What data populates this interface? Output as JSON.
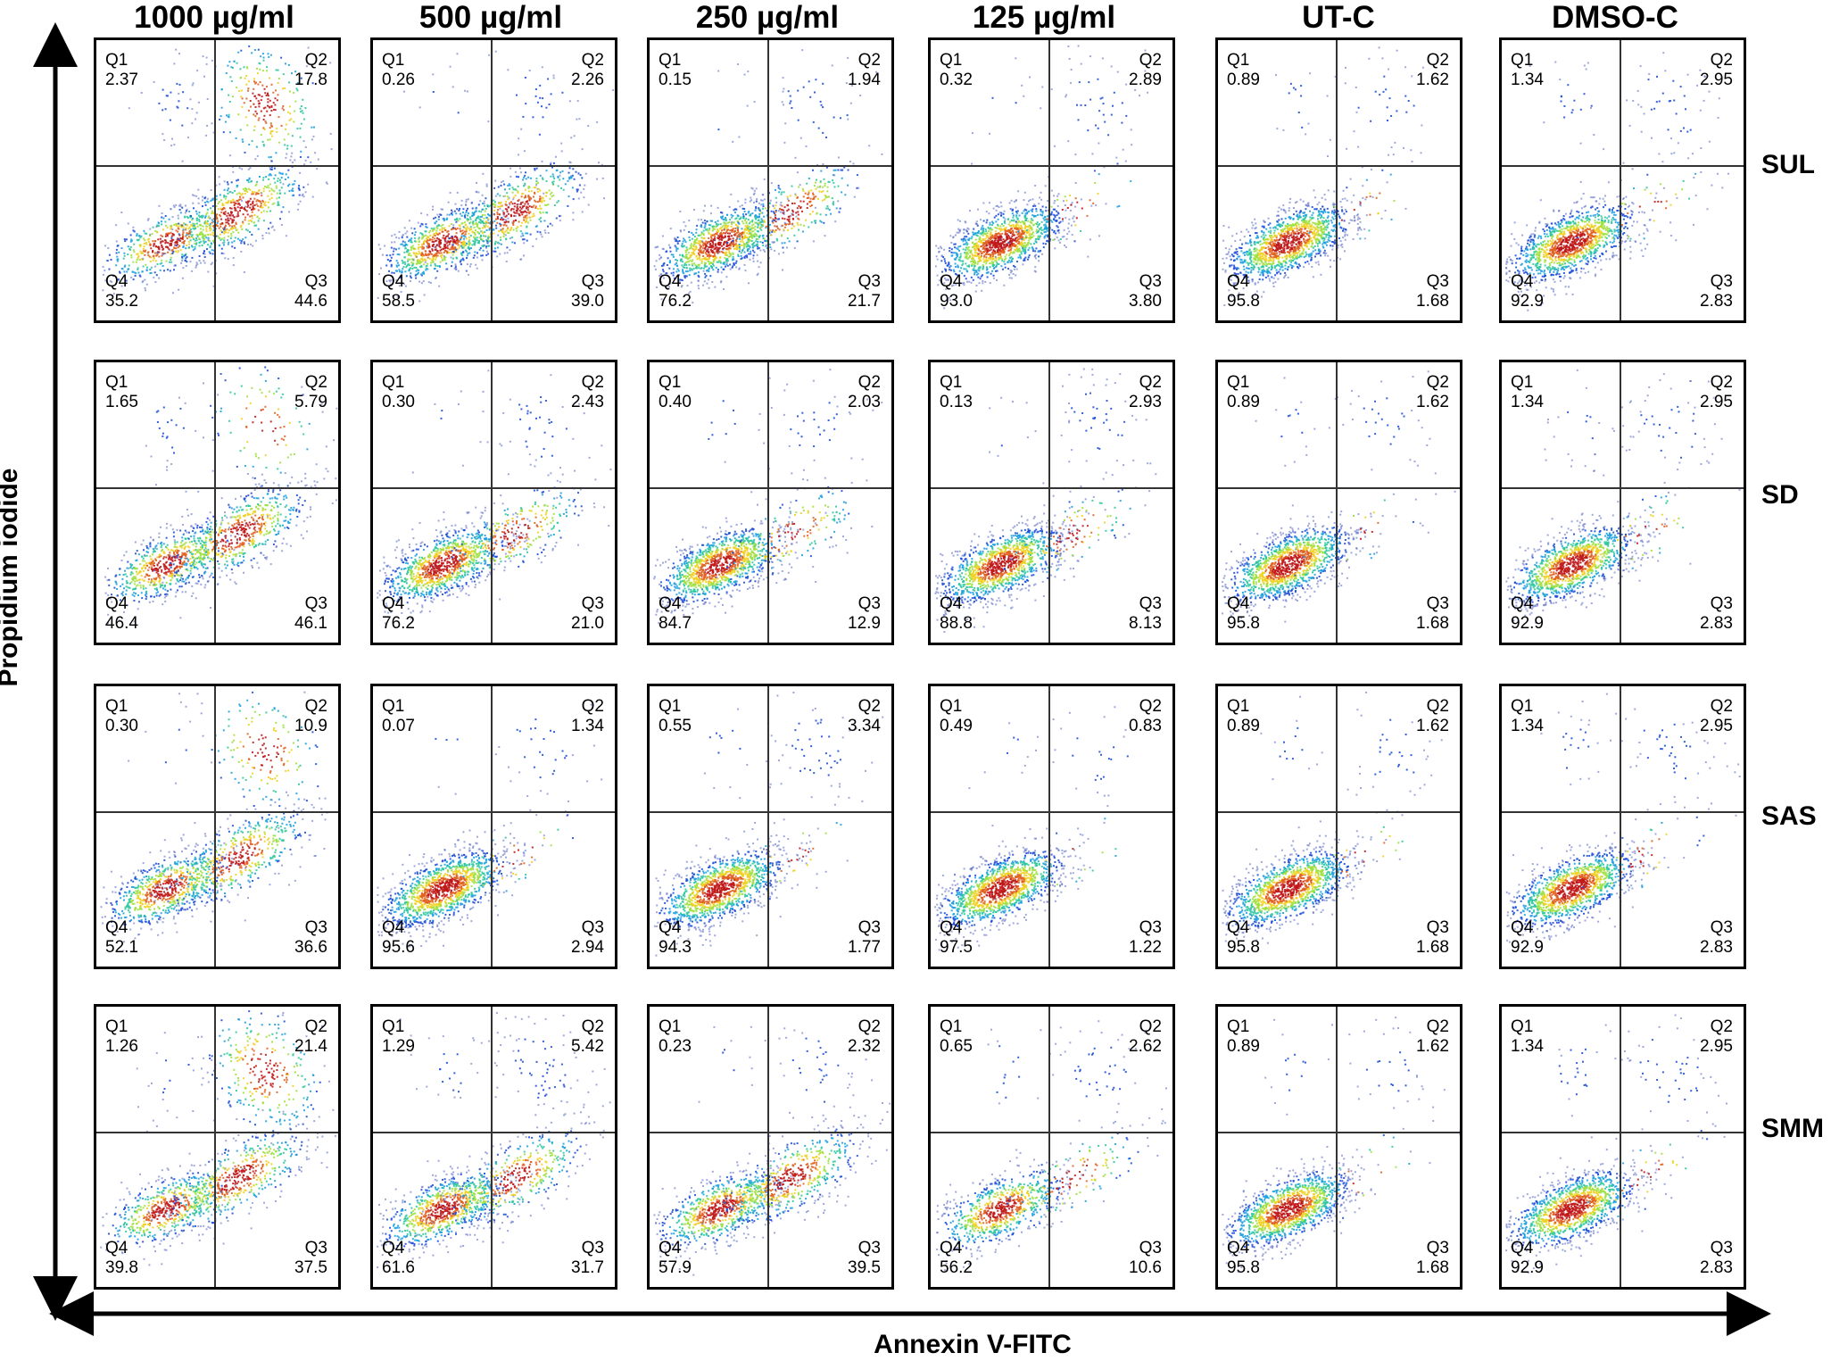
{
  "columns": [
    "1000 µg/ml",
    "500 µg/ml",
    "250 µg/ml",
    "125 µg/ml",
    "UT-C",
    "DMSO-C"
  ],
  "rows": [
    "SUL",
    "SD",
    "SAS",
    "SMM"
  ],
  "axes": {
    "x_title": "Annexin V-FITC",
    "y_title": "Propidium iodide"
  },
  "quadrant_names": [
    "Q1",
    "Q2",
    "Q3",
    "Q4"
  ],
  "chart_data": {
    "type": "scatter",
    "title": "",
    "xlabel": "Annexin V-FITC",
    "ylabel": "Propidium iodide",
    "grid": false,
    "panels": [
      {
        "row": "SUL",
        "column": "1000 µg/ml",
        "Q1": "2.37",
        "Q2": "17.8",
        "Q3": "44.6",
        "Q4": "35.2"
      },
      {
        "row": "SUL",
        "column": "500 µg/ml",
        "Q1": "0.26",
        "Q2": "2.26",
        "Q3": "39.0",
        "Q4": "58.5"
      },
      {
        "row": "SUL",
        "column": "250 µg/ml",
        "Q1": "0.15",
        "Q2": "1.94",
        "Q3": "21.7",
        "Q4": "76.2"
      },
      {
        "row": "SUL",
        "column": "125 µg/ml",
        "Q1": "0.32",
        "Q2": "2.89",
        "Q3": "3.80",
        "Q4": "93.0"
      },
      {
        "row": "SUL",
        "column": "UT-C",
        "Q1": "0.89",
        "Q2": "1.62",
        "Q3": "1.68",
        "Q4": "95.8"
      },
      {
        "row": "SUL",
        "column": "DMSO-C",
        "Q1": "1.34",
        "Q2": "2.95",
        "Q3": "2.83",
        "Q4": "92.9"
      },
      {
        "row": "SD",
        "column": "1000 µg/ml",
        "Q1": "1.65",
        "Q2": "5.79",
        "Q3": "46.1",
        "Q4": "46.4"
      },
      {
        "row": "SD",
        "column": "500 µg/ml",
        "Q1": "0.30",
        "Q2": "2.43",
        "Q3": "21.0",
        "Q4": "76.2"
      },
      {
        "row": "SD",
        "column": "250 µg/ml",
        "Q1": "0.40",
        "Q2": "2.03",
        "Q3": "12.9",
        "Q4": "84.7"
      },
      {
        "row": "SD",
        "column": "125 µg/ml",
        "Q1": "0.13",
        "Q2": "2.93",
        "Q3": "8.13",
        "Q4": "88.8"
      },
      {
        "row": "SD",
        "column": "UT-C",
        "Q1": "0.89",
        "Q2": "1.62",
        "Q3": "1.68",
        "Q4": "95.8"
      },
      {
        "row": "SD",
        "column": "DMSO-C",
        "Q1": "1.34",
        "Q2": "2.95",
        "Q3": "2.83",
        "Q4": "92.9"
      },
      {
        "row": "SAS",
        "column": "1000 µg/ml",
        "Q1": "0.30",
        "Q2": "10.9",
        "Q3": "36.6",
        "Q4": "52.1"
      },
      {
        "row": "SAS",
        "column": "500 µg/ml",
        "Q1": "0.07",
        "Q2": "1.34",
        "Q3": "2.94",
        "Q4": "95.6"
      },
      {
        "row": "SAS",
        "column": "250 µg/ml",
        "Q1": "0.55",
        "Q2": "3.34",
        "Q3": "1.77",
        "Q4": "94.3"
      },
      {
        "row": "SAS",
        "column": "125 µg/ml",
        "Q1": "0.49",
        "Q2": "0.83",
        "Q3": "1.22",
        "Q4": "97.5"
      },
      {
        "row": "SAS",
        "column": "UT-C",
        "Q1": "0.89",
        "Q2": "1.62",
        "Q3": "1.68",
        "Q4": "95.8"
      },
      {
        "row": "SAS",
        "column": "DMSO-C",
        "Q1": "1.34",
        "Q2": "2.95",
        "Q3": "2.83",
        "Q4": "92.9"
      },
      {
        "row": "SMM",
        "column": "1000 µg/ml",
        "Q1": "1.26",
        "Q2": "21.4",
        "Q3": "37.5",
        "Q4": "39.8"
      },
      {
        "row": "SMM",
        "column": "500 µg/ml",
        "Q1": "1.29",
        "Q2": "5.42",
        "Q3": "31.7",
        "Q4": "61.6"
      },
      {
        "row": "SMM",
        "column": "250 µg/ml",
        "Q1": "0.23",
        "Q2": "2.32",
        "Q3": "39.5",
        "Q4": "57.9"
      },
      {
        "row": "SMM",
        "column": "125 µg/ml",
        "Q1": "0.65",
        "Q2": "2.62",
        "Q3": "10.6",
        "Q4": "56.2"
      },
      {
        "row": "SMM",
        "column": "UT-C",
        "Q1": "0.89",
        "Q2": "1.62",
        "Q3": "1.68",
        "Q4": "95.8"
      },
      {
        "row": "SMM",
        "column": "DMSO-C",
        "Q1": "1.34",
        "Q2": "2.95",
        "Q3": "2.83",
        "Q4": "92.9"
      }
    ]
  }
}
